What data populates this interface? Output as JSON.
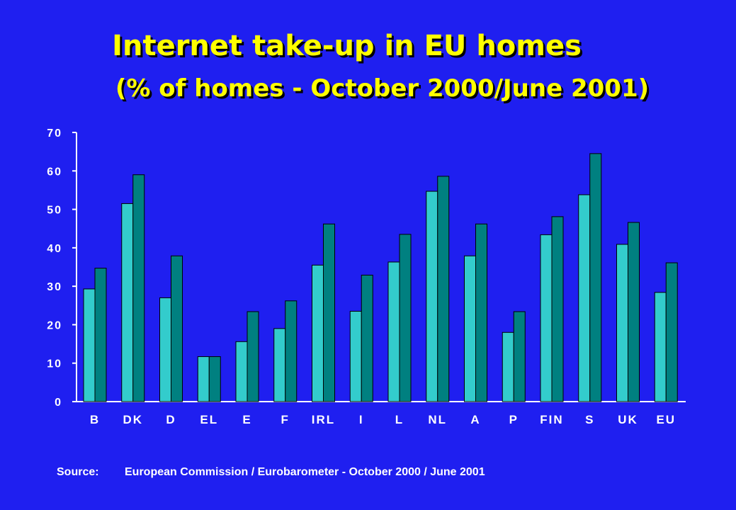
{
  "title": "Internet take-up in EU homes",
  "subtitle": "(% of homes - October 2000/June 2001)",
  "source_label": "Source:",
  "source_text": "European Commission / Eurobarometer - October 2000 / June 2001",
  "colors": {
    "background": "#1f1ff0",
    "series_2000": "#33cccc",
    "series_2001": "#008080",
    "title": "#ffff00",
    "axis": "#ffffff"
  },
  "chart_data": {
    "type": "bar",
    "title": "Internet take-up in EU homes",
    "subtitle": "(% of homes - October 2000/June 2001)",
    "categories": [
      "B",
      "DK",
      "D",
      "EL",
      "E",
      "F",
      "IRL",
      "I",
      "L",
      "NL",
      "A",
      "P",
      "FIN",
      "S",
      "UK",
      "EU"
    ],
    "series": [
      {
        "values": [
          29.3,
          51.5,
          27.0,
          11.7,
          15.6,
          19.0,
          35.5,
          23.5,
          36.3,
          54.7,
          37.9,
          18.0,
          43.4,
          53.8,
          40.9,
          28.4
        ]
      },
      {
        "values": [
          34.7,
          59.0,
          37.9,
          11.7,
          23.4,
          26.2,
          46.2,
          32.9,
          43.5,
          58.6,
          46.2,
          23.4,
          48.1,
          64.5,
          46.6,
          36.1
        ]
      }
    ],
    "ylim": [
      0,
      70
    ],
    "yticks": [
      0,
      10,
      20,
      30,
      40,
      50,
      60,
      70
    ],
    "grid": false,
    "legend": "none"
  }
}
